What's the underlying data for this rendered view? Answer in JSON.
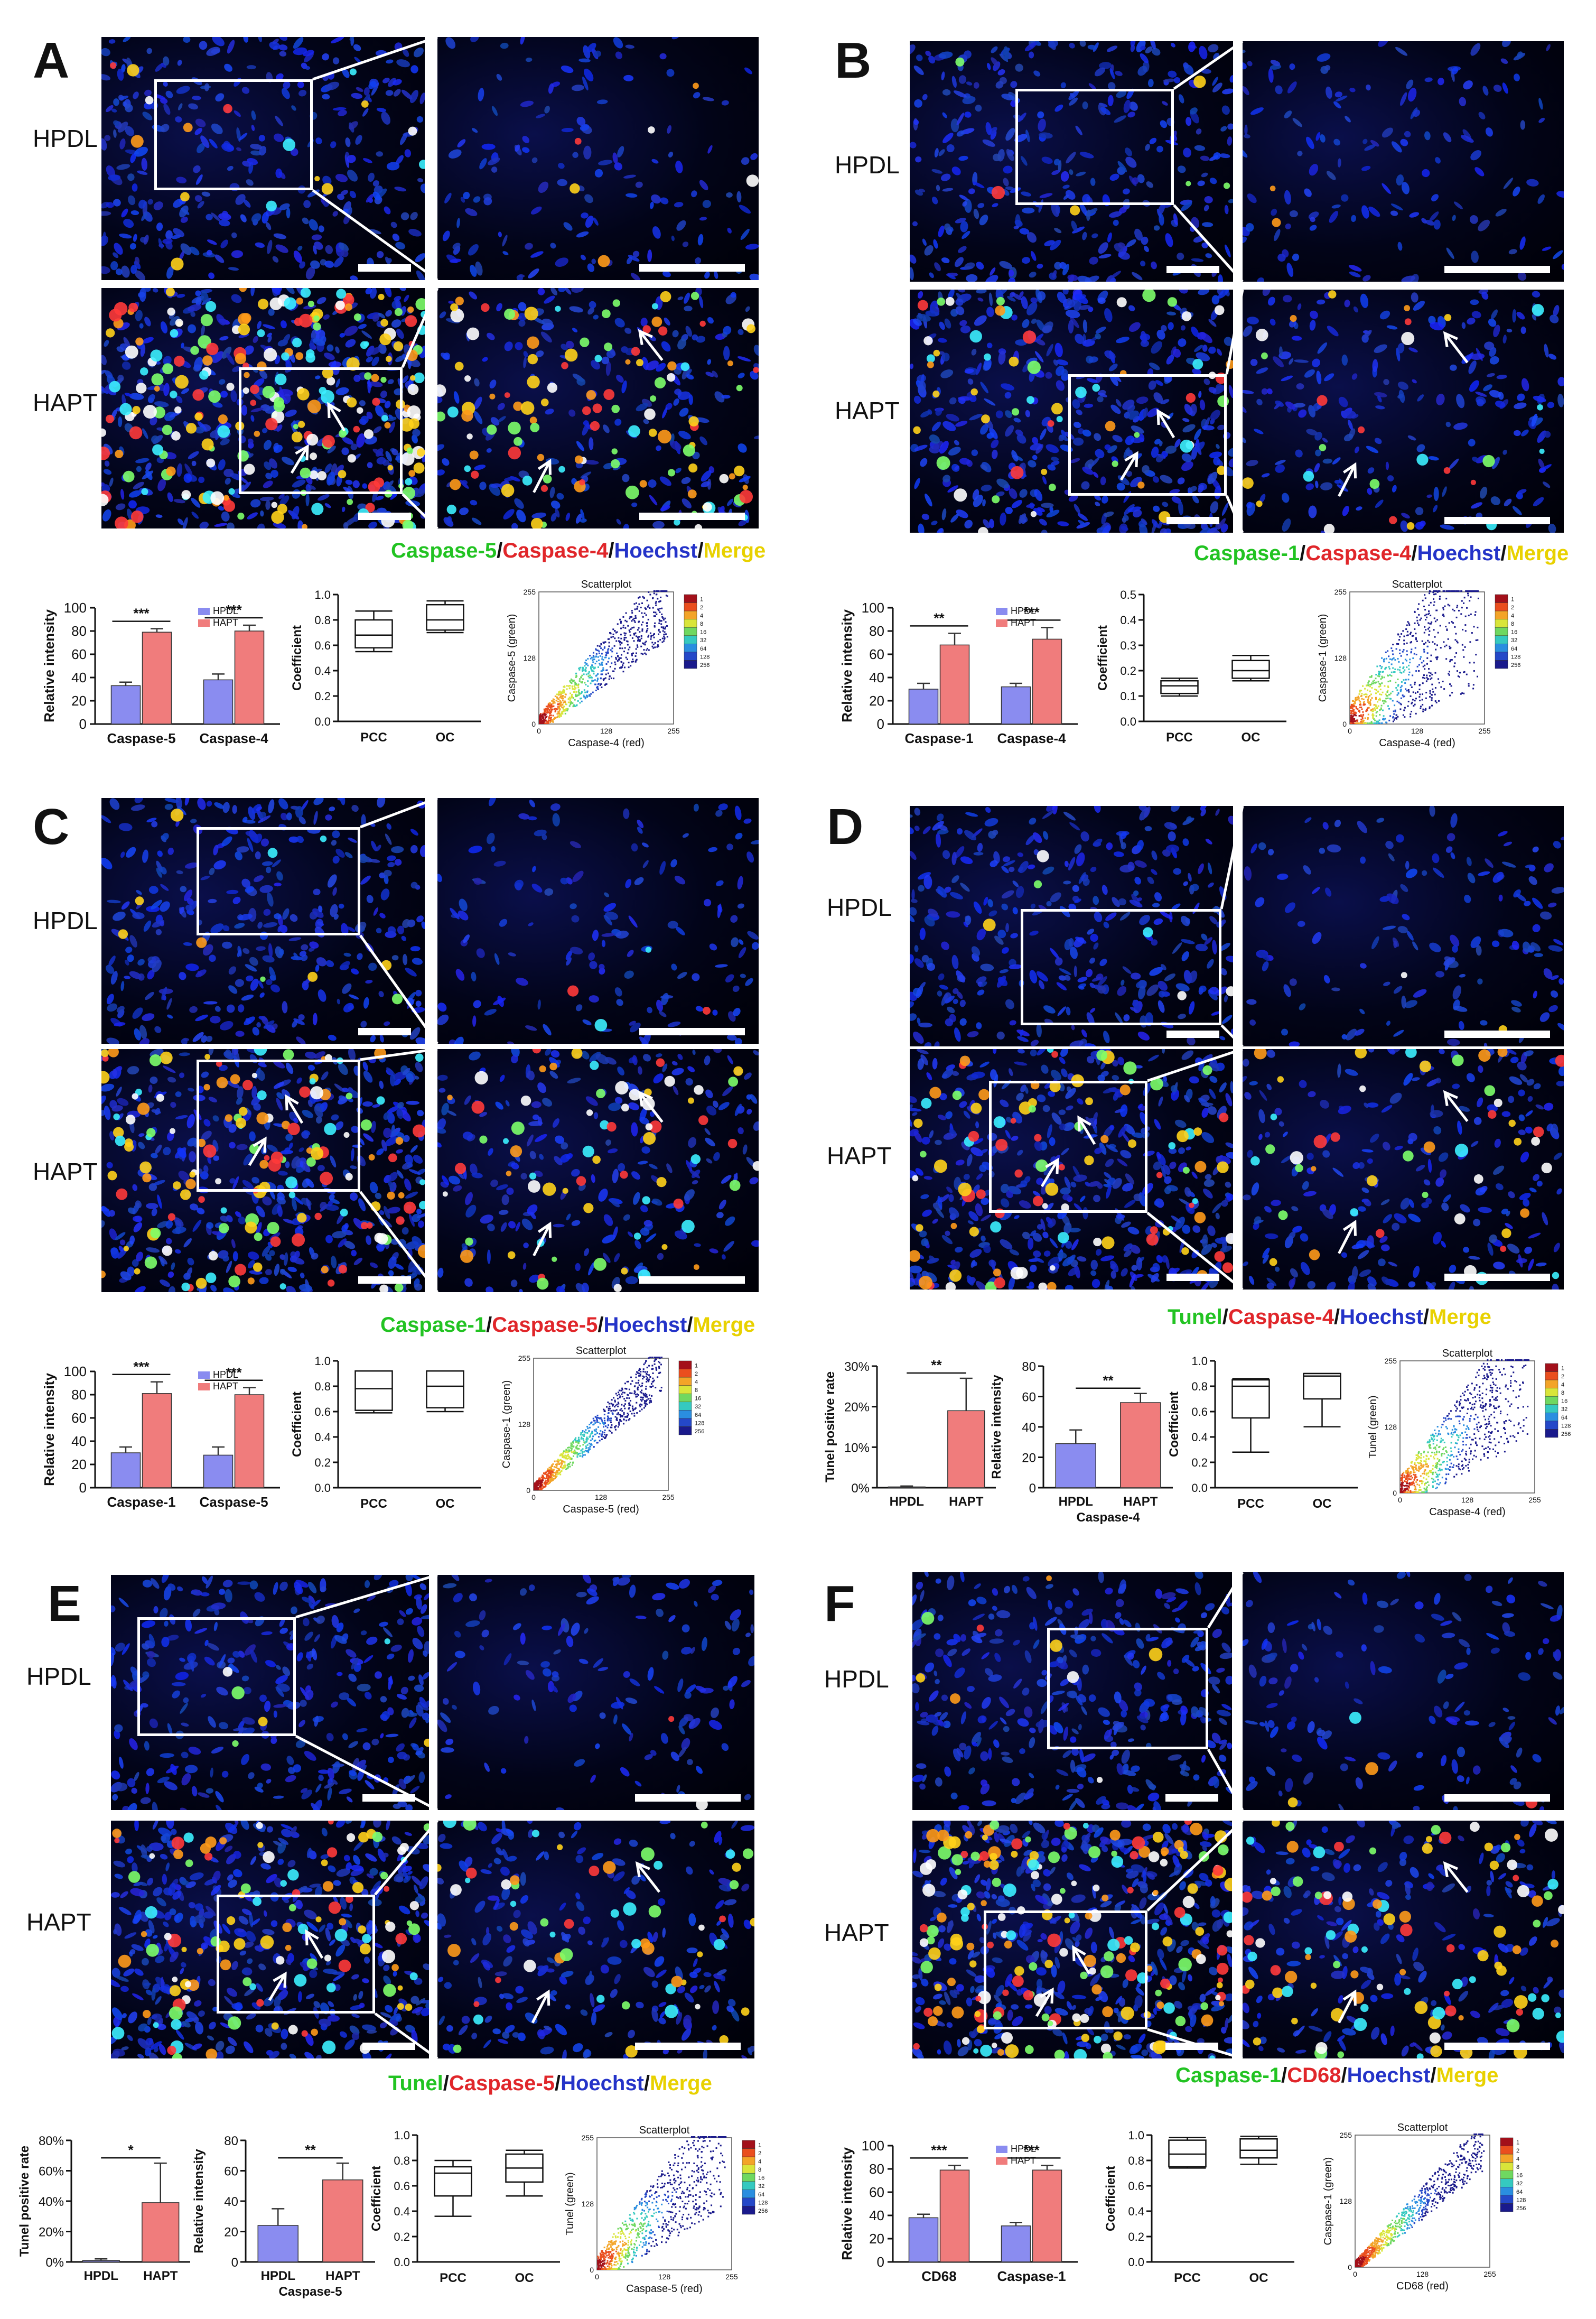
{
  "panels": [
    {
      "letter": "A",
      "top_label": "HPDL",
      "bottom_label": "HAPT",
      "stain_parts": [
        {
          "text": "Caspase-5",
          "color": "#22c322"
        },
        {
          "text": "/",
          "color": "#111111"
        },
        {
          "text": "Caspase-4",
          "color": "#e0262a"
        },
        {
          "text": "/",
          "color": "#111111"
        },
        {
          "text": "Hoechst",
          "color": "#2433c8"
        },
        {
          "text": "/",
          "color": "#111111"
        },
        {
          "text": "Merge",
          "color": "#e8d100"
        }
      ]
    },
    {
      "letter": "B",
      "top_label": "HPDL",
      "bottom_label": "HAPT",
      "stain_parts": [
        {
          "text": "Caspase-1",
          "color": "#22c322"
        },
        {
          "text": "/",
          "color": "#111111"
        },
        {
          "text": "Caspase-4",
          "color": "#e0262a"
        },
        {
          "text": "/",
          "color": "#111111"
        },
        {
          "text": "Hoechst",
          "color": "#2433c8"
        },
        {
          "text": "/",
          "color": "#111111"
        },
        {
          "text": "Merge",
          "color": "#e8d100"
        }
      ]
    },
    {
      "letter": "C",
      "top_label": "HPDL",
      "bottom_label": "HAPT",
      "stain_parts": [
        {
          "text": "Caspase-1",
          "color": "#22c322"
        },
        {
          "text": "/",
          "color": "#111111"
        },
        {
          "text": "Caspase-5",
          "color": "#e0262a"
        },
        {
          "text": "/",
          "color": "#111111"
        },
        {
          "text": "Hoechst",
          "color": "#2433c8"
        },
        {
          "text": "/",
          "color": "#111111"
        },
        {
          "text": "Merge",
          "color": "#e8d100"
        }
      ]
    },
    {
      "letter": "D",
      "top_label": "HPDL",
      "bottom_label": "HAPT",
      "stain_parts": [
        {
          "text": "Tunel",
          "color": "#22c322"
        },
        {
          "text": "/",
          "color": "#111111"
        },
        {
          "text": "Caspase-4",
          "color": "#e0262a"
        },
        {
          "text": "/",
          "color": "#111111"
        },
        {
          "text": "Hoechst",
          "color": "#2433c8"
        },
        {
          "text": "/",
          "color": "#111111"
        },
        {
          "text": "Merge",
          "color": "#e8d100"
        }
      ]
    },
    {
      "letter": "E",
      "top_label": "HPDL",
      "bottom_label": "HAPT",
      "stain_parts": [
        {
          "text": "Tunel",
          "color": "#22c322"
        },
        {
          "text": "/",
          "color": "#111111"
        },
        {
          "text": "Caspase-5",
          "color": "#e0262a"
        },
        {
          "text": "/",
          "color": "#111111"
        },
        {
          "text": "Hoechst",
          "color": "#2433c8"
        },
        {
          "text": "/",
          "color": "#111111"
        },
        {
          "text": "Merge",
          "color": "#e8d100"
        }
      ]
    },
    {
      "letter": "F",
      "top_label": "HPDL",
      "bottom_label": "HAPT",
      "stain_parts": [
        {
          "text": "Caspase-1",
          "color": "#22c322"
        },
        {
          "text": "/",
          "color": "#111111"
        },
        {
          "text": "CD68",
          "color": "#e0262a"
        },
        {
          "text": "/",
          "color": "#111111"
        },
        {
          "text": "Hoechst",
          "color": "#2433c8"
        },
        {
          "text": "/",
          "color": "#111111"
        },
        {
          "text": "Merge",
          "color": "#e8d100"
        }
      ]
    }
  ],
  "colors": {
    "hpdl_bar": "#8a8cf0",
    "hapt_bar": "#f07c7c",
    "micro_bg": "#020418",
    "nucleus": "#1f36e6"
  },
  "chart_data": [
    {
      "panel": "A",
      "type": "bar",
      "ylabel": "Relative intensity",
      "ylim": [
        0,
        100
      ],
      "yticks": [
        0,
        20,
        40,
        60,
        80,
        100
      ],
      "categories": [
        "Caspase-5",
        "Caspase-4"
      ],
      "legend": [
        "HPDL",
        "HAPT"
      ],
      "series": [
        {
          "name": "HPDL",
          "values": [
            33,
            38
          ],
          "errors": [
            3,
            5
          ]
        },
        {
          "name": "HAPT",
          "values": [
            79,
            80
          ],
          "errors": [
            3,
            5
          ]
        }
      ],
      "significance": [
        "***",
        "***"
      ]
    },
    {
      "panel": "A",
      "type": "box",
      "ylabel": "Coefficient",
      "categories": [
        "PCC",
        "OC"
      ],
      "boxes": [
        {
          "min": 0.55,
          "q1": 0.58,
          "median": 0.68,
          "q3": 0.8,
          "max": 0.87
        },
        {
          "min": 0.7,
          "q1": 0.72,
          "median": 0.8,
          "q3": 0.92,
          "max": 0.95
        }
      ]
    },
    {
      "panel": "A",
      "type": "scatter_density",
      "title": "Scatterplot",
      "xlabel": "Caspase-4 (red)",
      "ylabel": "Caspase-5 (green)",
      "xticks": [
        "0",
        "128",
        "255"
      ],
      "yticks": [
        "0",
        "128",
        "255"
      ],
      "legend_ticks": [
        "1",
        "2",
        "4",
        "8",
        "16",
        "32",
        "64",
        "128",
        "256"
      ],
      "spread": 0.45
    },
    {
      "panel": "B",
      "type": "bar",
      "ylabel": "Relative intensity",
      "ylim": [
        0,
        100
      ],
      "yticks": [
        0,
        20,
        40,
        60,
        80,
        100
      ],
      "categories": [
        "Caspase-1",
        "Caspase-4"
      ],
      "legend": [
        "HPDL",
        "HAPT"
      ],
      "series": [
        {
          "name": "HPDL",
          "values": [
            30,
            32
          ],
          "errors": [
            5,
            3
          ]
        },
        {
          "name": "HAPT",
          "values": [
            68,
            73
          ],
          "errors": [
            10,
            10
          ]
        }
      ],
      "significance": [
        "**",
        "***"
      ]
    },
    {
      "panel": "B",
      "type": "box",
      "ylabel": "Coefficient",
      "ylim": [
        0,
        0.5
      ],
      "yticks": [
        "0.0",
        "0.1",
        "0.2",
        "0.3",
        "0.4",
        "0.5"
      ],
      "categories": [
        "PCC",
        "OC"
      ],
      "boxes": [
        {
          "min": 0.1,
          "q1": 0.11,
          "median": 0.14,
          "q3": 0.16,
          "max": 0.17
        },
        {
          "min": 0.16,
          "q1": 0.17,
          "median": 0.2,
          "q3": 0.24,
          "max": 0.26
        }
      ]
    },
    {
      "panel": "B",
      "type": "scatter_density",
      "title": "Scatterplot",
      "xlabel": "Caspase-4 (red)",
      "ylabel": "Caspase-1 (green)",
      "xticks": [
        "0",
        "128",
        "255"
      ],
      "yticks": [
        "0",
        "128",
        "255"
      ],
      "legend_ticks": [
        "1",
        "2",
        "4",
        "8",
        "16",
        "32",
        "64",
        "128",
        "256"
      ],
      "spread": 1.0
    },
    {
      "panel": "C",
      "type": "bar",
      "ylabel": "Relative intensity",
      "ylim": [
        0,
        100
      ],
      "yticks": [
        0,
        20,
        40,
        60,
        80,
        100
      ],
      "categories": [
        "Caspase-1",
        "Caspase-5"
      ],
      "legend": [
        "HPDL",
        "HAPT"
      ],
      "series": [
        {
          "name": "HPDL",
          "values": [
            30,
            28
          ],
          "errors": [
            5,
            7
          ]
        },
        {
          "name": "HAPT",
          "values": [
            81,
            80
          ],
          "errors": [
            10,
            6
          ]
        }
      ],
      "significance": [
        "***",
        "***"
      ]
    },
    {
      "panel": "C",
      "type": "box",
      "ylabel": "Coefficient",
      "categories": [
        "PCC",
        "OC"
      ],
      "boxes": [
        {
          "min": 0.59,
          "q1": 0.61,
          "median": 0.78,
          "q3": 0.92,
          "max": 0.92
        },
        {
          "min": 0.6,
          "q1": 0.63,
          "median": 0.8,
          "q3": 0.92,
          "max": 0.92
        }
      ]
    },
    {
      "panel": "C",
      "type": "scatter_density",
      "title": "Scatterplot",
      "xlabel": "Caspase-5 (red)",
      "ylabel": "Caspase-1 (green)",
      "xticks": [
        "0",
        "128",
        "255"
      ],
      "yticks": [
        "0",
        "128",
        "255"
      ],
      "legend_ticks": [
        "1",
        "2",
        "4",
        "8",
        "16",
        "32",
        "64",
        "128",
        "256"
      ],
      "spread": 0.3
    },
    {
      "panel": "D",
      "type": "bar",
      "ylabel": "Tunel positive rate",
      "ylim": [
        0,
        30
      ],
      "yticks": [
        "0%",
        "10%",
        "20%",
        "30%"
      ],
      "categories": [
        "HPDL",
        "HAPT"
      ],
      "values": [
        0.2,
        19
      ],
      "errors": [
        0.2,
        8
      ],
      "significance": [
        "**"
      ]
    },
    {
      "panel": "D",
      "type": "bar",
      "ylabel": "Relative intensity",
      "xlabel": "Caspase-4",
      "ylim": [
        0,
        80
      ],
      "yticks": [
        0,
        20,
        40,
        60,
        80
      ],
      "categories": [
        "HPDL",
        "HAPT"
      ],
      "values": [
        29,
        56
      ],
      "errors": [
        9,
        6
      ],
      "significance": [
        "**"
      ]
    },
    {
      "panel": "D",
      "type": "box",
      "ylabel": "Coefficient",
      "categories": [
        "PCC",
        "OC"
      ],
      "boxes": [
        {
          "min": 0.28,
          "q1": 0.55,
          "median": 0.8,
          "q3": 0.85,
          "max": 0.86
        },
        {
          "min": 0.48,
          "q1": 0.7,
          "median": 0.88,
          "q3": 0.9,
          "max": 0.9
        }
      ]
    },
    {
      "panel": "D",
      "type": "scatter_density",
      "title": "Scatterplot",
      "xlabel": "Caspase-4 (red)",
      "ylabel": "Tunel (green)",
      "xticks": [
        "0",
        "128",
        "255"
      ],
      "yticks": [
        "0",
        "128",
        "255"
      ],
      "legend_ticks": [
        "1",
        "2",
        "4",
        "8",
        "16",
        "32",
        "64",
        "128",
        "256"
      ],
      "spread": 0.8
    },
    {
      "panel": "E",
      "type": "bar",
      "ylabel": "Tunel positive rate",
      "ylim": [
        0,
        80
      ],
      "yticks": [
        "0%",
        "20%",
        "40%",
        "60%",
        "80%"
      ],
      "categories": [
        "HPDL",
        "HAPT"
      ],
      "values": [
        1,
        39
      ],
      "errors": [
        1,
        26
      ],
      "significance": [
        "*"
      ]
    },
    {
      "panel": "E",
      "type": "bar",
      "ylabel": "Relative intensity",
      "xlabel": "Caspase-5",
      "ylim": [
        0,
        80
      ],
      "yticks": [
        0,
        20,
        40,
        60,
        80
      ],
      "categories": [
        "HPDL",
        "HAPT"
      ],
      "values": [
        24,
        54
      ],
      "errors": [
        11,
        11
      ],
      "significance": [
        "**"
      ]
    },
    {
      "panel": "E",
      "type": "box",
      "ylabel": "Coefficient",
      "categories": [
        "PCC",
        "OC"
      ],
      "boxes": [
        {
          "min": 0.36,
          "q1": 0.52,
          "median": 0.7,
          "q3": 0.75,
          "max": 0.8
        },
        {
          "min": 0.52,
          "q1": 0.63,
          "median": 0.74,
          "q3": 0.85,
          "max": 0.88
        }
      ]
    },
    {
      "panel": "E",
      "type": "scatter_density",
      "title": "Scatterplot",
      "xlabel": "Caspase-5 (red)",
      "ylabel": "Tunel (green)",
      "xticks": [
        "0",
        "128",
        "255"
      ],
      "yticks": [
        "0",
        "128",
        "255"
      ],
      "legend_ticks": [
        "1",
        "2",
        "4",
        "8",
        "16",
        "32",
        "64",
        "128",
        "256"
      ],
      "spread": 0.7
    },
    {
      "panel": "F",
      "type": "bar",
      "ylabel": "Relative intensity",
      "ylim": [
        0,
        100
      ],
      "yticks": [
        0,
        20,
        40,
        60,
        80,
        100
      ],
      "categories": [
        "CD68",
        "Caspase-1"
      ],
      "legend": [
        "HPDL",
        "HAPT"
      ],
      "series": [
        {
          "name": "HPDL",
          "values": [
            38,
            31
          ],
          "errors": [
            3,
            3
          ]
        },
        {
          "name": "HAPT",
          "values": [
            79,
            79
          ],
          "errors": [
            4,
            4
          ]
        }
      ],
      "significance": [
        "***",
        "***"
      ]
    },
    {
      "panel": "F",
      "type": "box",
      "ylabel": "Coefficient",
      "ylim": [
        0,
        1.0
      ],
      "yticks": [
        "0.0",
        "0.2",
        "0.4",
        "0.6",
        "0.8",
        "1.0"
      ],
      "categories": [
        "PCC",
        "OC"
      ],
      "boxes": [
        {
          "min": 0.74,
          "q1": 0.75,
          "median": 0.85,
          "q3": 0.96,
          "max": 0.98
        },
        {
          "min": 0.77,
          "q1": 0.82,
          "median": 0.88,
          "q3": 0.97,
          "max": 0.99
        }
      ]
    },
    {
      "panel": "F",
      "type": "scatter_density",
      "title": "Scatterplot",
      "xlabel": "CD68 (red)",
      "ylabel": "Caspase-1 (green)",
      "xticks": [
        "0",
        "128",
        "255"
      ],
      "yticks": [
        "0",
        "128",
        "255"
      ],
      "legend_ticks": [
        "1",
        "2",
        "4",
        "8",
        "16",
        "32",
        "64",
        "128",
        "256"
      ],
      "spread": 0.3
    }
  ]
}
